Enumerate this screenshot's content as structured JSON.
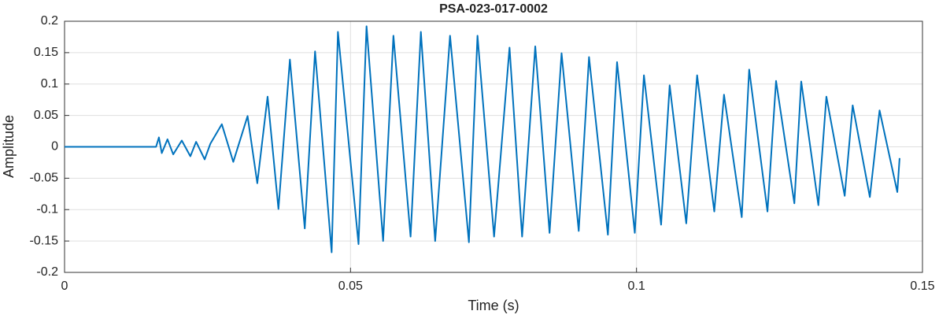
{
  "chart_data": {
    "type": "line",
    "title": "PSA-023-017-0002",
    "xlabel": "Time (s)",
    "ylabel": "Amplitude",
    "x": [
      0,
      0.016,
      0.0165,
      0.017,
      0.018,
      0.019,
      0.0205,
      0.022,
      0.023,
      0.0245,
      0.0255,
      0.0275,
      0.0295,
      0.032,
      0.0337,
      0.0355,
      0.0374,
      0.0394,
      0.042,
      0.0438,
      0.0467,
      0.0478,
      0.0514,
      0.0528,
      0.0557,
      0.0575,
      0.0605,
      0.0623,
      0.0648,
      0.0674,
      0.0707,
      0.0722,
      0.0751,
      0.0778,
      0.08,
      0.0823,
      0.0848,
      0.0869,
      0.0899,
      0.0917,
      0.095,
      0.0966,
      0.0997,
      0.1013,
      0.1043,
      0.1058,
      0.1087,
      0.1106,
      0.1136,
      0.1153,
      0.1184,
      0.1197,
      0.1229,
      0.1244,
      0.1276,
      0.1288,
      0.1318,
      0.1332,
      0.1364,
      0.1378,
      0.1408,
      0.1425,
      0.1456,
      0.146
    ],
    "series": [
      {
        "color": "#0072bd",
        "values": [
          0,
          0,
          0.015,
          -0.01,
          0.012,
          -0.012,
          0.01,
          -0.015,
          0.008,
          -0.02,
          0.005,
          0.036,
          -0.024,
          0.049,
          -0.058,
          0.08,
          -0.099,
          0.139,
          -0.13,
          0.152,
          -0.168,
          0.183,
          -0.155,
          0.192,
          -0.15,
          0.177,
          -0.143,
          0.183,
          -0.15,
          0.177,
          -0.152,
          0.177,
          -0.143,
          0.158,
          -0.143,
          0.16,
          -0.137,
          0.149,
          -0.134,
          0.143,
          -0.14,
          0.135,
          -0.137,
          0.114,
          -0.124,
          0.098,
          -0.122,
          0.114,
          -0.103,
          0.083,
          -0.112,
          0.123,
          -0.103,
          0.105,
          -0.09,
          0.104,
          -0.093,
          0.08,
          -0.078,
          0.066,
          -0.08,
          0.058,
          -0.072,
          -0.018
        ]
      }
    ],
    "xlim": [
      0,
      0.15
    ],
    "xticks": [
      0,
      0.05,
      0.1,
      0.15
    ],
    "ylim": [
      -0.2,
      0.2
    ],
    "yticks": [
      -0.2,
      -0.15,
      -0.1,
      -0.05,
      0,
      0.05,
      0.1,
      0.15,
      0.2
    ],
    "grid": true
  }
}
